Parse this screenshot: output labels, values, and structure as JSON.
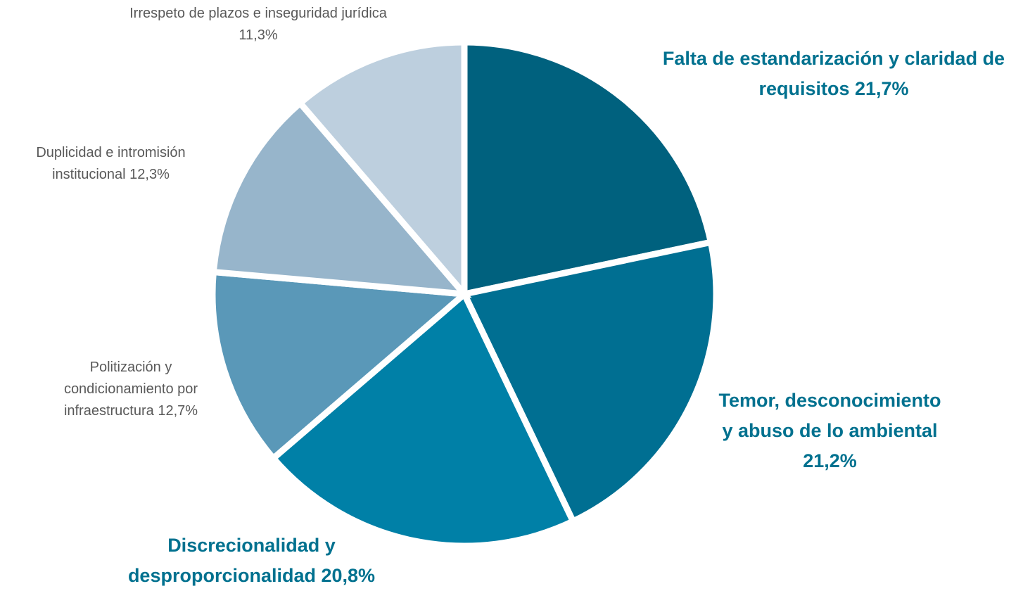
{
  "chart_data": {
    "type": "pie",
    "categories": [
      "Falta de estandarización y claridad de requisitos",
      "Temor, desconocimiento y abuso de lo ambiental",
      "Discrecionalidad y desproporcionalidad",
      "Politización y condicionamiento por infraestructura",
      "Duplicidad e intromisión institucional",
      "Irrespeto de plazos e inseguridad jurídica"
    ],
    "values": [
      21.7,
      21.2,
      20.8,
      12.7,
      12.3,
      11.3
    ],
    "value_labels": [
      "21,7%",
      "21,2%",
      "20,8%",
      "12,7%",
      "12,3%",
      "11,3%"
    ],
    "colors": [
      "#00617e",
      "#006f92",
      "#0080a7",
      "#5a98b8",
      "#97b5cb",
      "#bdcfde"
    ]
  }
}
